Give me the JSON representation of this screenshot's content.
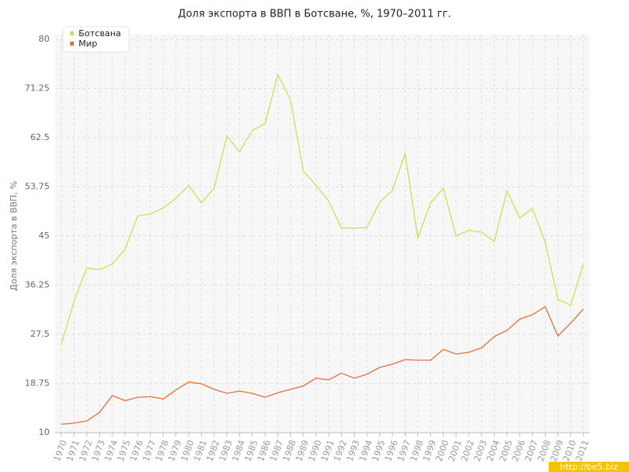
{
  "chart_data": {
    "type": "line",
    "title": "Доля экспорта в ВВП в Ботсване, %, 1970–2011 гг.",
    "y_label": "Доля экспорта в ВВП, %",
    "watermark": "http://be5.biz",
    "categories": [
      "1970",
      "1971",
      "1972",
      "1973",
      "1974",
      "1975",
      "1976",
      "1977",
      "1978",
      "1979",
      "1980",
      "1981",
      "1982",
      "1983",
      "1984",
      "1985",
      "1986",
      "1987",
      "1988",
      "1989",
      "1990",
      "1991",
      "1992",
      "1993",
      "1994",
      "1995",
      "1996",
      "1997",
      "1998",
      "1999",
      "2000",
      "2001",
      "2002",
      "2003",
      "2004",
      "2005",
      "2006",
      "2007",
      "2008",
      "2009",
      "2010",
      "2011"
    ],
    "series": [
      {
        "name": "Ботсвана",
        "color": "#c8e05c",
        "values": [
          25.7,
          33.4,
          39.3,
          39.0,
          40.0,
          42.6,
          48.6,
          48.9,
          50.0,
          51.7,
          54.0,
          50.9,
          53.5,
          62.8,
          60.0,
          63.8,
          65.0,
          73.7,
          69.2,
          56.6,
          54.0,
          51.2,
          46.4,
          46.4,
          46.5,
          51.0,
          53.1,
          59.7,
          44.6,
          50.9,
          53.5,
          45.0,
          46.0,
          45.7,
          44.0,
          53.0,
          48.2,
          49.9,
          43.9,
          33.7,
          32.7,
          40.0
        ]
      },
      {
        "name": "Мир",
        "color": "#e0703c",
        "values": [
          11.5,
          11.7,
          12.1,
          13.6,
          16.6,
          15.7,
          16.3,
          16.4,
          16.0,
          17.6,
          19.0,
          18.7,
          17.7,
          17.0,
          17.4,
          17.0,
          16.3,
          17.1,
          17.7,
          18.3,
          19.7,
          19.4,
          20.6,
          19.7,
          20.4,
          21.6,
          22.2,
          23.0,
          22.9,
          22.9,
          24.8,
          24.0,
          24.3,
          25.1,
          27.1,
          28.2,
          30.2,
          31.0,
          32.4,
          27.2,
          29.5,
          32.0
        ]
      }
    ],
    "ylim": [
      10,
      80
    ],
    "yticks": [
      10,
      18.75,
      27.5,
      36.25,
      45,
      53.75,
      62.5,
      71.25,
      80
    ],
    "grid": true,
    "legend": "top-left"
  }
}
